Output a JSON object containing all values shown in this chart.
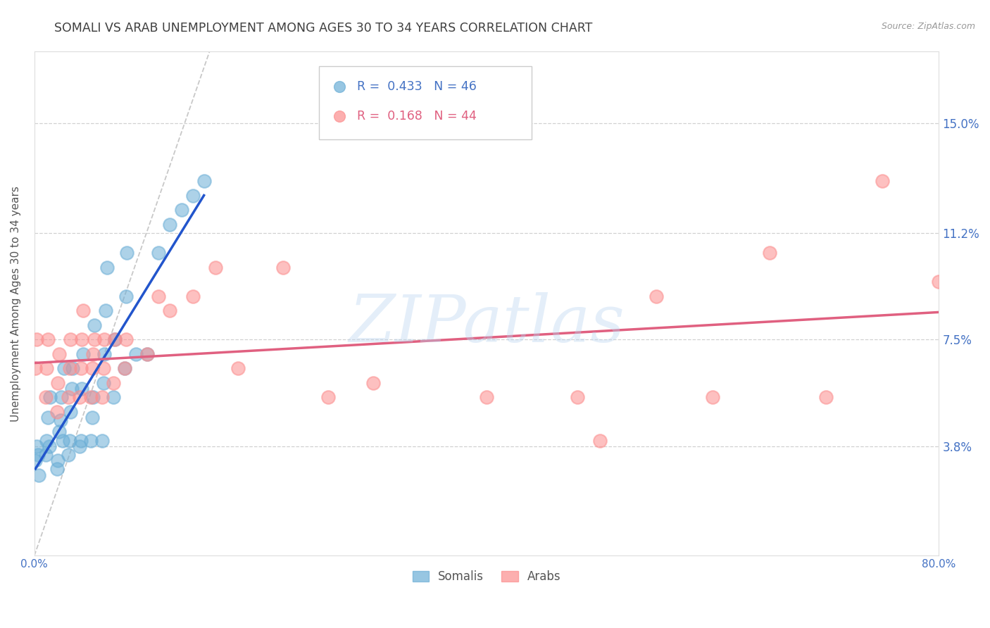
{
  "title": "SOMALI VS ARAB UNEMPLOYMENT AMONG AGES 30 TO 34 YEARS CORRELATION CHART",
  "source": "Source: ZipAtlas.com",
  "ylabel": "Unemployment Among Ages 30 to 34 years",
  "xlim": [
    0.0,
    0.8
  ],
  "ylim": [
    0.0,
    0.175
  ],
  "yticks": [
    0.038,
    0.075,
    0.112,
    0.15
  ],
  "ytick_labels": [
    "3.8%",
    "7.5%",
    "11.2%",
    "15.0%"
  ],
  "xticks": [
    0.0,
    0.1,
    0.2,
    0.3,
    0.4,
    0.5,
    0.6,
    0.7,
    0.8
  ],
  "xtick_labels_visible": [
    "0.0%",
    "",
    "",
    "",
    "",
    "",
    "",
    "",
    "80.0%"
  ],
  "watermark": "ZIPatlas",
  "somali_color": "#6baed6",
  "arab_color": "#fc8d8d",
  "somali_line_color": "#2255cc",
  "arab_line_color": "#e06080",
  "ref_line_color": "#bbbbbb",
  "somali_R": 0.433,
  "somali_N": 46,
  "arab_R": 0.168,
  "arab_N": 44,
  "somali_x": [
    0.001,
    0.002,
    0.003,
    0.004,
    0.01,
    0.011,
    0.012,
    0.013,
    0.014,
    0.02,
    0.021,
    0.022,
    0.023,
    0.024,
    0.025,
    0.026,
    0.03,
    0.031,
    0.032,
    0.033,
    0.034,
    0.04,
    0.041,
    0.042,
    0.043,
    0.05,
    0.051,
    0.052,
    0.053,
    0.06,
    0.061,
    0.062,
    0.063,
    0.064,
    0.07,
    0.071,
    0.08,
    0.081,
    0.082,
    0.09,
    0.1,
    0.11,
    0.12,
    0.13,
    0.14,
    0.15
  ],
  "somali_y": [
    0.033,
    0.038,
    0.035,
    0.028,
    0.035,
    0.04,
    0.048,
    0.038,
    0.055,
    0.03,
    0.033,
    0.043,
    0.047,
    0.055,
    0.04,
    0.065,
    0.035,
    0.04,
    0.05,
    0.058,
    0.065,
    0.038,
    0.04,
    0.058,
    0.07,
    0.04,
    0.048,
    0.055,
    0.08,
    0.04,
    0.06,
    0.07,
    0.085,
    0.1,
    0.055,
    0.075,
    0.065,
    0.09,
    0.105,
    0.07,
    0.07,
    0.105,
    0.115,
    0.12,
    0.125,
    0.13
  ],
  "arab_x": [
    0.001,
    0.002,
    0.01,
    0.011,
    0.012,
    0.02,
    0.021,
    0.022,
    0.03,
    0.031,
    0.032,
    0.04,
    0.041,
    0.042,
    0.043,
    0.05,
    0.051,
    0.052,
    0.053,
    0.06,
    0.061,
    0.062,
    0.07,
    0.071,
    0.08,
    0.081,
    0.1,
    0.11,
    0.12,
    0.14,
    0.16,
    0.18,
    0.22,
    0.26,
    0.3,
    0.4,
    0.48,
    0.5,
    0.55,
    0.6,
    0.65,
    0.7,
    0.75,
    0.8
  ],
  "arab_y": [
    0.065,
    0.075,
    0.055,
    0.065,
    0.075,
    0.05,
    0.06,
    0.07,
    0.055,
    0.065,
    0.075,
    0.055,
    0.065,
    0.075,
    0.085,
    0.055,
    0.065,
    0.07,
    0.075,
    0.055,
    0.065,
    0.075,
    0.06,
    0.075,
    0.065,
    0.075,
    0.07,
    0.09,
    0.085,
    0.09,
    0.1,
    0.065,
    0.1,
    0.055,
    0.06,
    0.055,
    0.055,
    0.04,
    0.09,
    0.055,
    0.105,
    0.055,
    0.13,
    0.095
  ],
  "background_color": "#ffffff",
  "grid_color": "#cccccc",
  "axis_label_color": "#4472c4",
  "title_color": "#404040"
}
